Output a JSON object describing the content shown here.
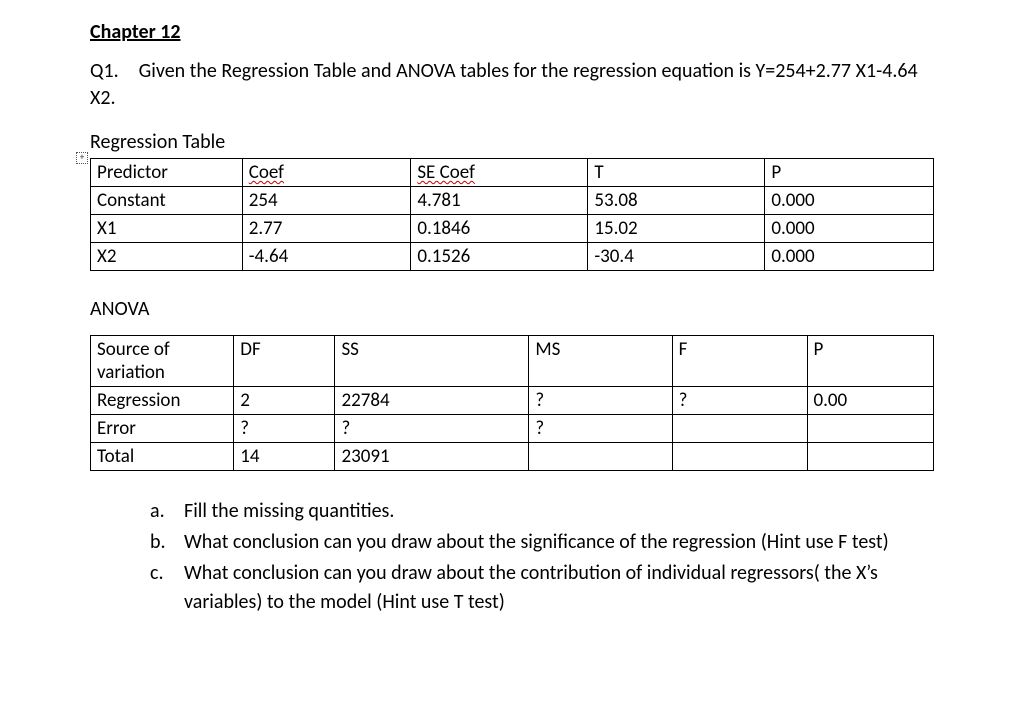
{
  "chapter": "Chapter 12",
  "question_prefix": "Q1. Given the Regression Table and ANOVA tables for the regression equation is Y=254+2.77 X1-4.64 X2.",
  "regression_label": "Regression Table",
  "regression_table": {
    "columns": [
      "Predictor",
      "Coef",
      "SE Coef",
      "T",
      "P"
    ],
    "col_widths_pct": [
      18,
      20,
      21,
      21,
      20
    ],
    "header_font_size": 19,
    "cell_font_size": 19,
    "border_color": "#000000",
    "spellcheck_columns": [
      "Coef",
      "SE Coef"
    ],
    "rows": [
      [
        "Constant",
        "254",
        "4.781",
        "53.08",
        "0.000"
      ],
      [
        "X1",
        "2.77",
        "0.1846",
        "15.02",
        "0.000"
      ],
      [
        "X2",
        "-4.64",
        "0.1526",
        "-30.4",
        "0.000"
      ]
    ]
  },
  "anova_label": "ANOVA",
  "anova_table": {
    "columns": [
      "Source of variation",
      "DF",
      "SS",
      "MS",
      "F",
      "P"
    ],
    "col_widths_pct": [
      17,
      12,
      23,
      17,
      16,
      15
    ],
    "header_font_size": 19,
    "cell_font_size": 19,
    "border_color": "#000000",
    "rows": [
      [
        "Regression",
        "2",
        "22784",
        "?",
        "?",
        "0.00"
      ],
      [
        "Error",
        "?",
        "?",
        "?",
        "",
        ""
      ],
      [
        "Total",
        "14",
        "23091",
        "",
        "",
        ""
      ]
    ]
  },
  "sub_questions": [
    {
      "marker": "a.",
      "text": "Fill the missing quantities."
    },
    {
      "marker": "b.",
      "text": "What conclusion can you draw about the significance of the regression (Hint use F test)"
    },
    {
      "marker": "c.",
      "text": "What conclusion can you draw about the contribution of individual regressors( the X’s variables) to the model (Hint use T test)"
    }
  ],
  "plus_glyph": "+",
  "colors": {
    "text": "#000000",
    "background": "#ffffff",
    "spell_wave": "#c00000",
    "table_border": "#000000"
  },
  "typography": {
    "base_font_family": "Calibri",
    "chapter_fontsize": 20,
    "body_fontsize": 20,
    "table_fontsize": 19,
    "chapter_weight": 700
  }
}
